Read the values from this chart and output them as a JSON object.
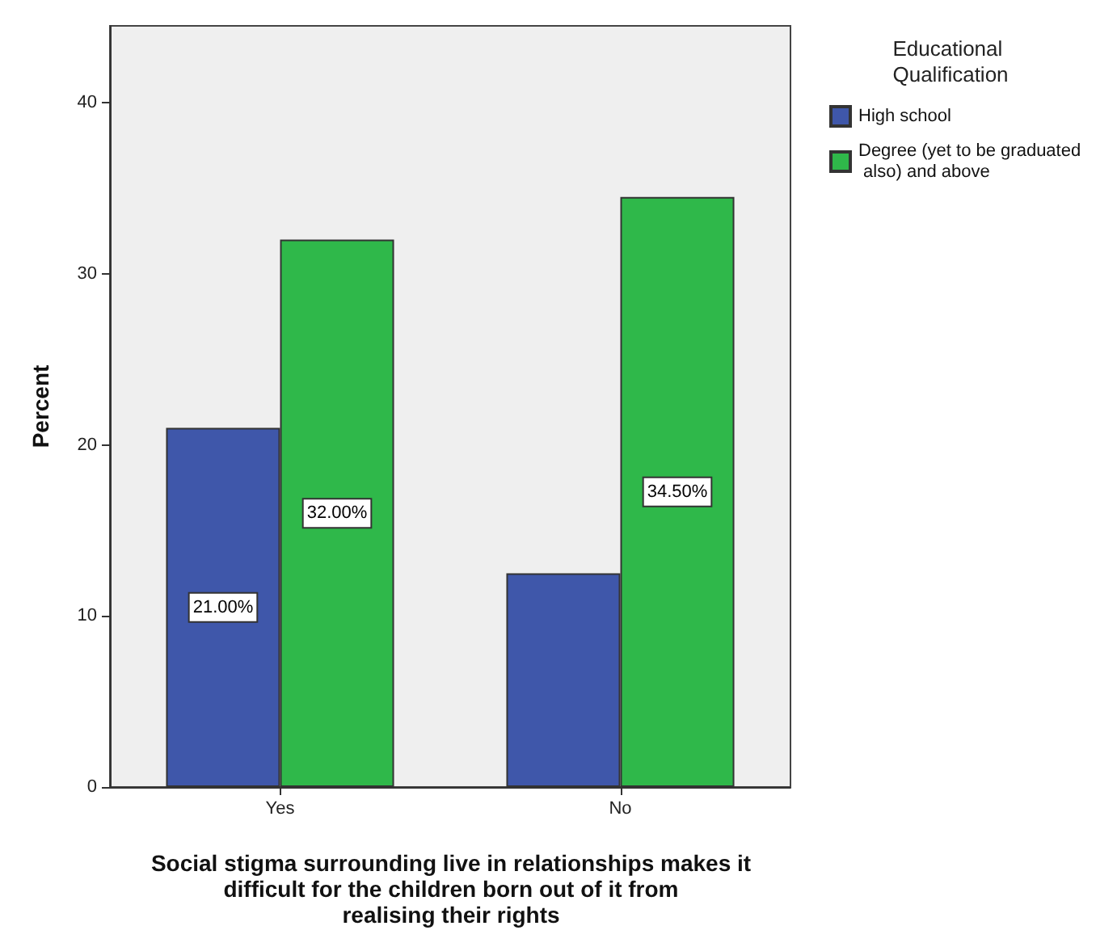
{
  "chart_data": {
    "type": "bar",
    "categories": [
      "Yes",
      "No"
    ],
    "xlabel": "Social stigma surrounding live in relationships makes it difficult for the children born out of it from realising their rights",
    "ylabel": "Percent",
    "legend_title": "Educational Qualification",
    "legend": "top right",
    "ylim": [
      0,
      44.5
    ],
    "yticks": [
      0,
      10,
      20,
      30,
      40
    ],
    "grid": false,
    "series": [
      {
        "name": "High school",
        "color": "#3f57aa",
        "values": [
          21,
          12.5
        ],
        "value_labels": [
          "21.00%",
          null
        ]
      },
      {
        "name": "Degree (yet to be graduated also) and above",
        "color": "#2fb84a",
        "values": [
          32,
          34.5
        ],
        "value_labels": [
          "32.00%",
          "34.50%"
        ]
      }
    ]
  }
}
